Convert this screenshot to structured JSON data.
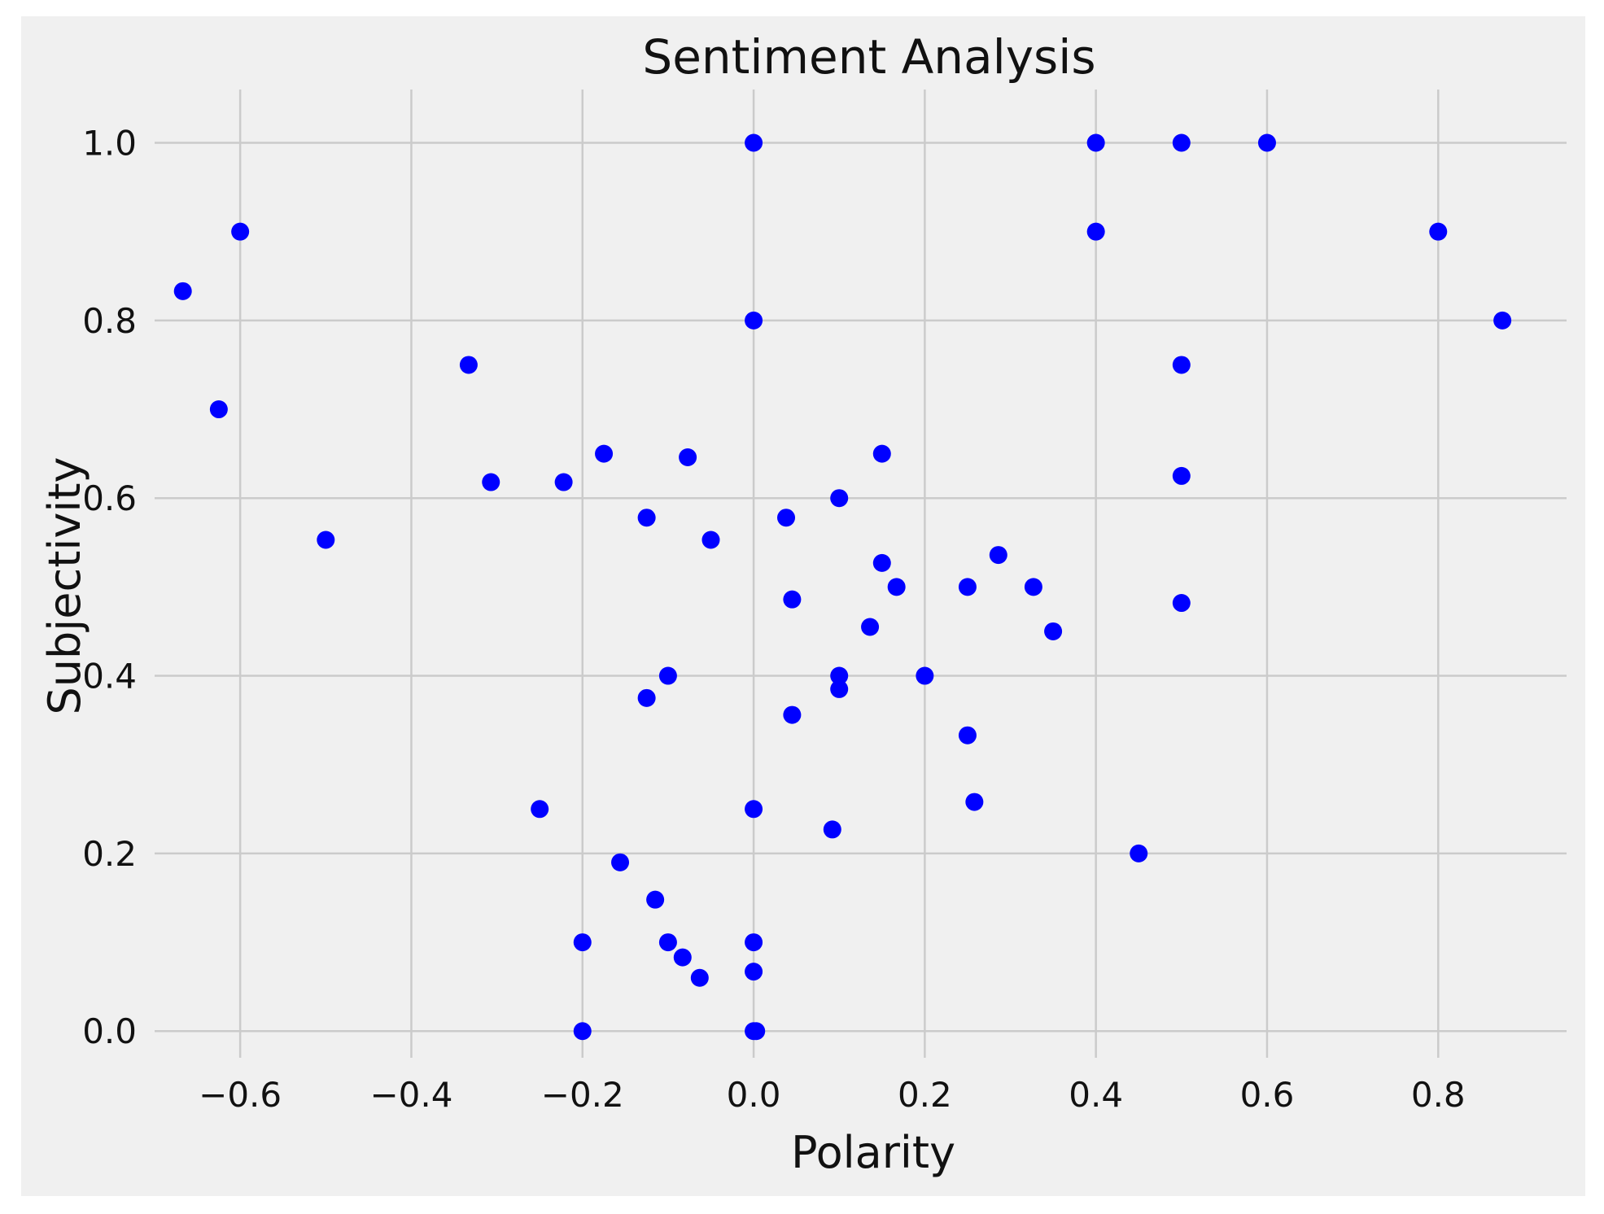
{
  "chart_data": {
    "type": "scatter",
    "title": "Sentiment Analysis",
    "xlabel": "Polarity",
    "ylabel": "Subjectivity",
    "xlim": [
      -0.7,
      0.95
    ],
    "ylim": [
      -0.03,
      1.06
    ],
    "xticks": [
      -0.6,
      -0.4,
      -0.2,
      0.0,
      0.2,
      0.4,
      0.6,
      0.8
    ],
    "xtick_labels": [
      "−0.6",
      "−0.4",
      "−0.2",
      "0.0",
      "0.2",
      "0.4",
      "0.6",
      "0.8"
    ],
    "yticks": [
      0.0,
      0.2,
      0.4,
      0.6,
      0.8,
      1.0
    ],
    "ytick_labels": [
      "0.0",
      "0.2",
      "0.4",
      "0.6",
      "0.8",
      "1.0"
    ],
    "grid": true,
    "background_color": "#f0f0f0",
    "grid_color": "#cbcbcb",
    "marker_color": "#0000ff",
    "series": [
      {
        "points": [
          {
            "x": 0.0,
            "y": 1.0
          },
          {
            "x": 0.4,
            "y": 1.0
          },
          {
            "x": 0.5,
            "y": 1.0
          },
          {
            "x": 0.6,
            "y": 1.0
          },
          {
            "x": -0.6,
            "y": 0.9
          },
          {
            "x": 0.4,
            "y": 0.9
          },
          {
            "x": 0.8,
            "y": 0.9
          },
          {
            "x": -0.667,
            "y": 0.833
          },
          {
            "x": 0.0,
            "y": 0.8
          },
          {
            "x": 0.875,
            "y": 0.8
          },
          {
            "x": -0.333,
            "y": 0.75
          },
          {
            "x": 0.5,
            "y": 0.75
          },
          {
            "x": -0.625,
            "y": 0.7
          },
          {
            "x": -0.175,
            "y": 0.65
          },
          {
            "x": -0.077,
            "y": 0.646
          },
          {
            "x": 0.15,
            "y": 0.65
          },
          {
            "x": 0.5,
            "y": 0.625
          },
          {
            "x": -0.307,
            "y": 0.618
          },
          {
            "x": -0.222,
            "y": 0.618
          },
          {
            "x": 0.1,
            "y": 0.6
          },
          {
            "x": -0.125,
            "y": 0.578
          },
          {
            "x": 0.038,
            "y": 0.578
          },
          {
            "x": -0.5,
            "y": 0.553
          },
          {
            "x": -0.05,
            "y": 0.553
          },
          {
            "x": 0.286,
            "y": 0.536
          },
          {
            "x": 0.15,
            "y": 0.527
          },
          {
            "x": 0.167,
            "y": 0.5
          },
          {
            "x": 0.25,
            "y": 0.5
          },
          {
            "x": 0.327,
            "y": 0.5
          },
          {
            "x": 0.045,
            "y": 0.486
          },
          {
            "x": 0.5,
            "y": 0.482
          },
          {
            "x": 0.136,
            "y": 0.455
          },
          {
            "x": 0.35,
            "y": 0.45
          },
          {
            "x": -0.1,
            "y": 0.4
          },
          {
            "x": 0.1,
            "y": 0.4
          },
          {
            "x": 0.2,
            "y": 0.4
          },
          {
            "x": 0.1,
            "y": 0.385
          },
          {
            "x": -0.125,
            "y": 0.375
          },
          {
            "x": 0.045,
            "y": 0.356
          },
          {
            "x": 0.25,
            "y": 0.333
          },
          {
            "x": 0.258,
            "y": 0.258
          },
          {
            "x": -0.25,
            "y": 0.25
          },
          {
            "x": 0.0,
            "y": 0.25
          },
          {
            "x": 0.092,
            "y": 0.227
          },
          {
            "x": 0.45,
            "y": 0.2
          },
          {
            "x": -0.156,
            "y": 0.19
          },
          {
            "x": -0.115,
            "y": 0.148
          },
          {
            "x": -0.2,
            "y": 0.1
          },
          {
            "x": -0.1,
            "y": 0.1
          },
          {
            "x": 0.0,
            "y": 0.1
          },
          {
            "x": -0.083,
            "y": 0.083
          },
          {
            "x": 0.0,
            "y": 0.067
          },
          {
            "x": -0.063,
            "y": 0.06
          },
          {
            "x": -0.2,
            "y": 0.0
          },
          {
            "x": 0.0,
            "y": 0.0
          },
          {
            "x": 0.003,
            "y": 0.0
          }
        ]
      }
    ]
  }
}
